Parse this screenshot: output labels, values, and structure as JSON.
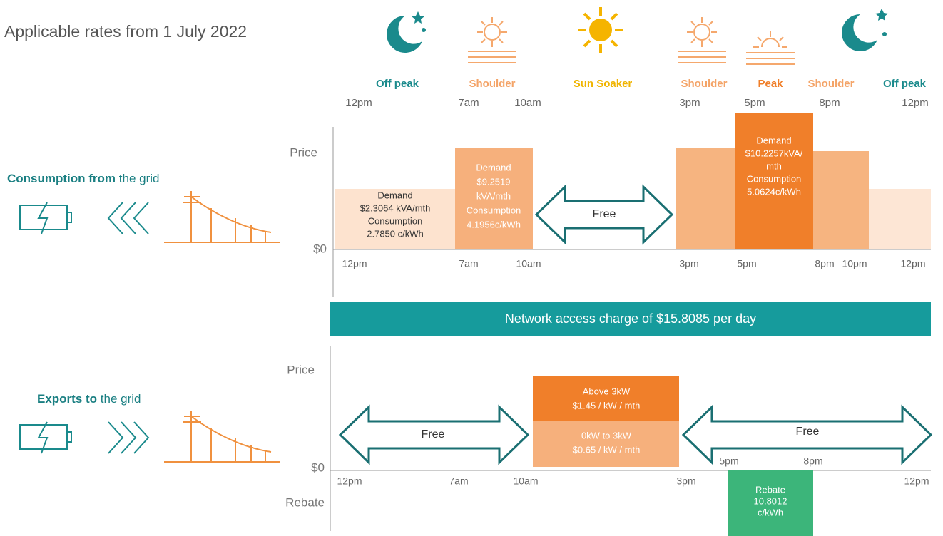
{
  "title": "Applicable rates from 1 July 2022",
  "periods": [
    "Off peak",
    "Shoulder",
    "Sun Soaker",
    "Shoulder",
    "Peak",
    "Shoulder",
    "Off peak"
  ],
  "top_times": [
    "12pm",
    "7am",
    "10am",
    "3pm",
    "5pm",
    "8pm",
    "12pm"
  ],
  "consumption": {
    "heading_bold": "Consumption from",
    "heading_rest": "the grid",
    "axis_top": "Price",
    "axis_zero": "$0",
    "off_peak_block": [
      "Demand",
      "$2.3064 kVA/mth",
      "Consumption",
      "2.7850 c/kWh"
    ],
    "shoulder_block": [
      "Demand",
      "$9.2519",
      "kVA/mth",
      "Consumption",
      "4.1956c/kWh"
    ],
    "peak_block": [
      "Demand",
      "$10.2257kVA/",
      "mth",
      "Consumption",
      "5.0624c/kWh"
    ],
    "free": "Free",
    "times": [
      "12pm",
      "7am",
      "10am",
      "3pm",
      "5pm",
      "8pm",
      "10pm",
      "12pm"
    ]
  },
  "network": "Network access charge of $15.8085 per day",
  "exports": {
    "heading_bold": "Exports to",
    "heading_rest": "the grid",
    "axis_top": "Price",
    "axis_zero": "$0",
    "axis_bottom": "Rebate",
    "above_block": [
      "Above 3kW",
      "$1.45 / kW / mth"
    ],
    "below_block": [
      "0kW to 3kW",
      "$0.65 / kW / mth"
    ],
    "rebate_block": [
      "Rebate",
      "10.8012",
      "c/kWh"
    ],
    "free_left": "Free",
    "free_right": "Free",
    "times": [
      "12pm",
      "7am",
      "10am",
      "3pm",
      "12pm"
    ],
    "evening_times": [
      "5pm",
      "8pm"
    ]
  }
}
